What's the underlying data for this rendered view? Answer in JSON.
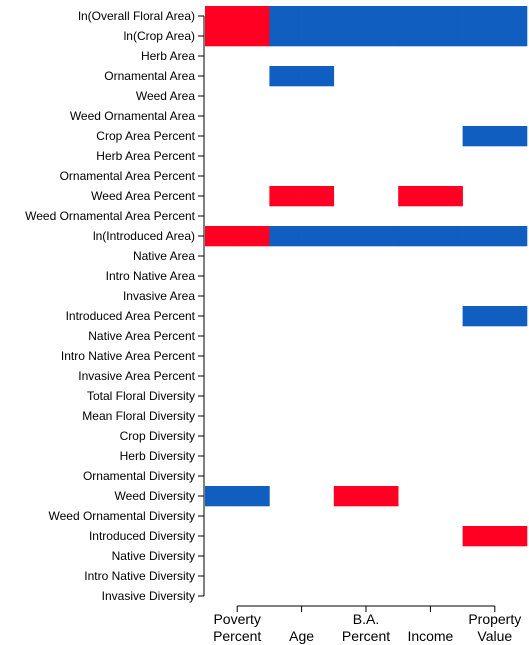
{
  "chart_data": {
    "type": "heatmap",
    "title": "",
    "xlabel": "",
    "ylabel": "",
    "columns": [
      "Poverty\nPercent",
      "Age",
      "B.A.\nPercent",
      "Income",
      "Property\nValue"
    ],
    "rows": [
      "ln(Overall Floral Area)",
      "ln(Crop Area)",
      "Herb Area",
      "Ornamental Area",
      "Weed Area",
      "Weed Ornamental Area",
      "Crop Area Percent",
      "Herb Area Percent",
      "Ornamental Area Percent",
      "Weed Area Percent",
      "Weed Ornamental Area Percent",
      "ln(Introduced Area)",
      "Native Area",
      "Intro Native Area",
      "Invasive Area",
      "Introduced Area Percent",
      "Native Area Percent",
      "Intro Native Area Percent",
      "Invasive Area Percent",
      "Total Floral Diversity",
      "Mean Floral Diversity",
      "Crop Diversity",
      "Herb Diversity",
      "Ornamental Diversity",
      "Weed Diversity",
      "Weed Ornamental Diversity",
      "Introduced Diversity",
      "Native Diversity",
      "Intro Native Diversity",
      "Invasive Diversity"
    ],
    "value_legend": {
      "1": "positive",
      "-1": "negative",
      "0": "none"
    },
    "colors": {
      "positive": "#ff0022",
      "negative": "#0f5ec0"
    },
    "bins_per_column": 2,
    "cells": [
      [
        1,
        1,
        -1,
        -1,
        -1,
        -1,
        -1,
        -1,
        -1,
        -1
      ],
      [
        1,
        1,
        -1,
        -1,
        -1,
        -1,
        -1,
        -1,
        -1,
        -1
      ],
      [
        0,
        0,
        0,
        0,
        0,
        0,
        0,
        0,
        0,
        0
      ],
      [
        0,
        0,
        -1,
        -1,
        0,
        0,
        0,
        0,
        0,
        0
      ],
      [
        0,
        0,
        0,
        0,
        0,
        0,
        0,
        0,
        0,
        0
      ],
      [
        0,
        0,
        0,
        0,
        0,
        0,
        0,
        0,
        0,
        0
      ],
      [
        0,
        0,
        0,
        0,
        0,
        0,
        0,
        0,
        -1,
        -1
      ],
      [
        0,
        0,
        0,
        0,
        0,
        0,
        0,
        0,
        0,
        0
      ],
      [
        0,
        0,
        0,
        0,
        0,
        0,
        0,
        0,
        0,
        0
      ],
      [
        0,
        0,
        1,
        1,
        0,
        0,
        1,
        1,
        0,
        0
      ],
      [
        0,
        0,
        0,
        0,
        0,
        0,
        0,
        0,
        0,
        0
      ],
      [
        1,
        1,
        -1,
        -1,
        -1,
        -1,
        -1,
        -1,
        -1,
        -1
      ],
      [
        0,
        0,
        0,
        0,
        0,
        0,
        0,
        0,
        0,
        0
      ],
      [
        0,
        0,
        0,
        0,
        0,
        0,
        0,
        0,
        0,
        0
      ],
      [
        0,
        0,
        0,
        0,
        0,
        0,
        0,
        0,
        0,
        0
      ],
      [
        0,
        0,
        0,
        0,
        0,
        0,
        0,
        0,
        -1,
        -1
      ],
      [
        0,
        0,
        0,
        0,
        0,
        0,
        0,
        0,
        0,
        0
      ],
      [
        0,
        0,
        0,
        0,
        0,
        0,
        0,
        0,
        0,
        0
      ],
      [
        0,
        0,
        0,
        0,
        0,
        0,
        0,
        0,
        0,
        0
      ],
      [
        0,
        0,
        0,
        0,
        0,
        0,
        0,
        0,
        0,
        0
      ],
      [
        0,
        0,
        0,
        0,
        0,
        0,
        0,
        0,
        0,
        0
      ],
      [
        0,
        0,
        0,
        0,
        0,
        0,
        0,
        0,
        0,
        0
      ],
      [
        0,
        0,
        0,
        0,
        0,
        0,
        0,
        0,
        0,
        0
      ],
      [
        0,
        0,
        0,
        0,
        0,
        0,
        0,
        0,
        0,
        0
      ],
      [
        -1,
        -1,
        0,
        0,
        1,
        1,
        0,
        0,
        0,
        0
      ],
      [
        0,
        0,
        0,
        0,
        0,
        0,
        0,
        0,
        0,
        0
      ],
      [
        0,
        0,
        0,
        0,
        0,
        0,
        0,
        0,
        1,
        1
      ],
      [
        0,
        0,
        0,
        0,
        0,
        0,
        0,
        0,
        0,
        0
      ],
      [
        0,
        0,
        0,
        0,
        0,
        0,
        0,
        0,
        0,
        0
      ],
      [
        0,
        0,
        0,
        0,
        0,
        0,
        0,
        0,
        0,
        0
      ]
    ]
  }
}
